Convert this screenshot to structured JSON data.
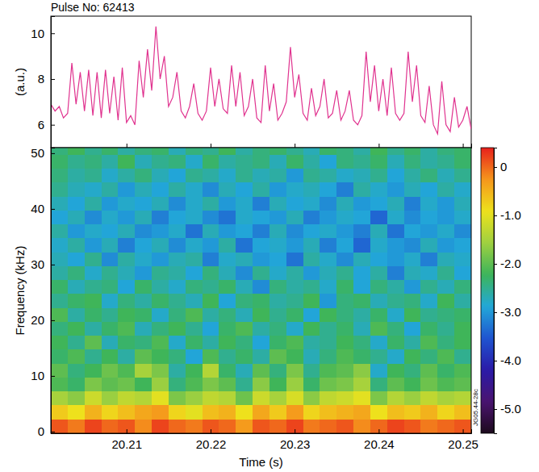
{
  "chart_data": [
    {
      "type": "line",
      "title": "Pulse No: 62413",
      "y_label": "(a.u.)",
      "x": [
        20.201,
        20.2015,
        20.202,
        20.2025,
        20.203,
        20.2035,
        20.204,
        20.2045,
        20.205,
        20.2055,
        20.206,
        20.2065,
        20.207,
        20.2075,
        20.208,
        20.2085,
        20.209,
        20.2095,
        20.21,
        20.2105,
        20.211,
        20.2115,
        20.212,
        20.2125,
        20.213,
        20.2135,
        20.214,
        20.2145,
        20.215,
        20.2155,
        20.216,
        20.2165,
        20.217,
        20.2175,
        20.218,
        20.2185,
        20.219,
        20.2195,
        20.22,
        20.2205,
        20.221,
        20.2215,
        20.222,
        20.2225,
        20.223,
        20.2235,
        20.224,
        20.2245,
        20.225,
        20.2255,
        20.226,
        20.2265,
        20.227,
        20.2275,
        20.228,
        20.2285,
        20.229,
        20.2295,
        20.23,
        20.2305,
        20.231,
        20.2315,
        20.232,
        20.2325,
        20.233,
        20.2335,
        20.234,
        20.2345,
        20.235,
        20.2355,
        20.236,
        20.2365,
        20.237,
        20.2375,
        20.238,
        20.2385,
        20.239,
        20.2395,
        20.24,
        20.2405,
        20.241,
        20.2415,
        20.242,
        20.2425,
        20.243,
        20.2435,
        20.244,
        20.2445,
        20.245,
        20.2455,
        20.246,
        20.2465,
        20.247,
        20.2475,
        20.248,
        20.2485,
        20.249,
        20.2495,
        20.25,
        20.2505,
        20.251
      ],
      "series": [
        {
          "color": "#e0338f",
          "values": [
            6.9,
            6.6,
            6.8,
            6.3,
            6.5,
            8.7,
            6.9,
            8.3,
            6.6,
            8.4,
            6.4,
            8.3,
            6.3,
            8.4,
            6.5,
            8.1,
            6.2,
            8.5,
            6.1,
            6.4,
            6.0,
            8.8,
            7.2,
            9.3,
            7.5,
            10.3,
            8.0,
            9.0,
            6.8,
            7.2,
            8.3,
            6.6,
            6.3,
            6.8,
            7.8,
            6.5,
            6.2,
            6.6,
            8.5,
            6.8,
            8.0,
            6.7,
            6.5,
            8.6,
            6.8,
            8.3,
            6.4,
            6.8,
            8.0,
            6.3,
            6.1,
            8.6,
            6.6,
            7.8,
            6.2,
            6.5,
            7.0,
            9.4,
            7.2,
            8.2,
            6.5,
            6.2,
            7.6,
            6.4,
            6.8,
            8.0,
            6.3,
            6.5,
            7.5,
            6.2,
            6.6,
            7.5,
            6.2,
            6.0,
            6.4,
            9.2,
            7.0,
            8.6,
            6.6,
            8.0,
            6.4,
            8.5,
            6.5,
            6.2,
            6.5,
            9.2,
            7.0,
            8.6,
            6.4,
            6.1,
            7.7,
            6.0,
            5.6,
            7.9,
            6.0,
            5.7,
            7.2,
            5.9,
            6.2,
            6.8,
            5.8
          ]
        }
      ],
      "xlim": [
        20.201,
        20.251
      ],
      "ylim": [
        5.0,
        10.75
      ],
      "xticks": [
        20.21,
        20.22,
        20.23,
        20.24,
        20.25
      ],
      "yticks": [
        6,
        8,
        10
      ],
      "tick_labels": "y"
    },
    {
      "type": "heatmap",
      "x_label": "Time (s)",
      "y_label": "Frequency (kHz)",
      "annotation": "JG05.44-28c",
      "xlim": [
        20.201,
        20.251
      ],
      "ylim": [
        -0.3,
        51
      ],
      "xticks": [
        20.21,
        20.22,
        20.23,
        20.24,
        20.25
      ],
      "yticks": [
        0,
        10,
        20,
        30,
        40,
        50
      ],
      "time_bins": [
        20.201,
        20.203,
        20.205,
        20.207,
        20.209,
        20.211,
        20.213,
        20.215,
        20.217,
        20.219,
        20.221,
        20.223,
        20.225,
        20.227,
        20.229,
        20.231,
        20.233,
        20.235,
        20.237,
        20.239,
        20.241,
        20.243,
        20.245,
        20.247,
        20.249,
        20.251
      ],
      "freq_bins": [
        -0.3,
        2.2,
        4.7,
        7.2,
        9.7,
        12.2,
        14.7,
        17.2,
        19.7,
        22.2,
        24.7,
        27.2,
        29.7,
        32.2,
        34.7,
        37.2,
        39.7,
        42.2,
        44.7,
        47.2,
        49.7,
        51
      ],
      "cells": [
        [
          0.1,
          -0.1,
          0.2,
          0,
          0.1,
          -0.2,
          0.2,
          0,
          -0.1,
          0.1,
          0,
          -0.3,
          0.1,
          0,
          0.2,
          -0.1,
          0,
          0.1,
          -0.2,
          0,
          0.2,
          0.1,
          -0.1,
          0,
          0.1
        ],
        [
          -0.7,
          -0.9,
          -0.5,
          -0.8,
          -0.6,
          -0.4,
          -0.3,
          -0.8,
          -1,
          -0.6,
          -0.5,
          -0.9,
          -0.4,
          -0.7,
          -0.3,
          -0.8,
          -0.6,
          -0.5,
          -0.4,
          -0.9,
          -0.6,
          -0.7,
          -0.5,
          -0.8,
          -0.6
        ],
        [
          -1.5,
          -1.7,
          -1.2,
          -1.6,
          -1.3,
          -1.4,
          -1.0,
          -1.8,
          -1.6,
          -1.3,
          -1.4,
          -1.9,
          -1.2,
          -1.5,
          -1.1,
          -1.7,
          -1.3,
          -1.2,
          -1.0,
          -1.8,
          -1.4,
          -1.6,
          -1.3,
          -1.5,
          -1.4
        ],
        [
          -2.1,
          -2.3,
          -1.8,
          -2.0,
          -1.9,
          -2.2,
          -1.6,
          -2.4,
          -2.1,
          -1.8,
          -2.0,
          -2.5,
          -1.7,
          -2.2,
          -1.6,
          -2.3,
          -1.9,
          -1.8,
          -1.5,
          -2.4,
          -2.0,
          -2.2,
          -1.9,
          -2.1,
          -2.0
        ],
        [
          -2.0,
          -2.4,
          -2.2,
          -1.9,
          -2.1,
          -1.5,
          -1.8,
          -2.6,
          -2.2,
          -1.4,
          -2.3,
          -2.7,
          -2.0,
          -2.4,
          -1.8,
          -2.5,
          -2.1,
          -2.0,
          -1.7,
          -2.8,
          -2.2,
          -2.4,
          -2.0,
          -2.3,
          -2.1
        ],
        [
          -2.3,
          -2.1,
          -2.5,
          -2.2,
          -2.6,
          -2.0,
          -2.2,
          -2.4,
          -2.9,
          -2.1,
          -2.5,
          -2.3,
          -2.6,
          -2.0,
          -2.2,
          -2.7,
          -2.4,
          -2.1,
          -2.3,
          -2.5,
          -2.8,
          -2.2,
          -2.4,
          -2.1,
          -2.5
        ],
        [
          -2.2,
          -2.5,
          -2.0,
          -2.7,
          -2.3,
          -2.4,
          -2.1,
          -2.8,
          -2.3,
          -2.6,
          -2.2,
          -2.4,
          -2.9,
          -2.3,
          -2.1,
          -2.6,
          -2.5,
          -2.2,
          -2.4,
          -2.8,
          -2.3,
          -2.6,
          -2.1,
          -2.4,
          -2.2
        ],
        [
          -2.4,
          -2.2,
          -2.6,
          -2.3,
          -2.1,
          -2.7,
          -2.4,
          -2.2,
          -2.5,
          -2.9,
          -2.3,
          -2.1,
          -2.6,
          -2.4,
          -2.8,
          -2.2,
          -2.5,
          -2.3,
          -2.7,
          -2.1,
          -2.4,
          -2.9,
          -2.3,
          -2.5,
          -2.2
        ],
        [
          -2.1,
          -2.6,
          -2.3,
          -2.5,
          -2.2,
          -2.3,
          -2.8,
          -2.4,
          -2.1,
          -2.6,
          -2.4,
          -2.7,
          -2.2,
          -2.5,
          -2.3,
          -2.9,
          -2.2,
          -2.4,
          -2.6,
          -2.3,
          -2.8,
          -2.2,
          -2.5,
          -2.4,
          -2.3
        ],
        [
          -2.5,
          -2.3,
          -2.2,
          -2.8,
          -2.4,
          -2.6,
          -2.3,
          -2.5,
          -2.7,
          -2.2,
          -2.9,
          -2.4,
          -2.3,
          -2.6,
          -2.5,
          -2.2,
          -3.0,
          -2.4,
          -2.3,
          -2.7,
          -2.5,
          -2.4,
          -2.8,
          -2.2,
          -2.6
        ],
        [
          -2.3,
          -2.7,
          -2.5,
          -2.4,
          -2.9,
          -2.3,
          -2.6,
          -2.8,
          -2.4,
          -2.5,
          -2.3,
          -2.7,
          -3.1,
          -2.4,
          -2.6,
          -2.5,
          -2.8,
          -2.3,
          -2.9,
          -2.4,
          -2.6,
          -3.0,
          -2.5,
          -2.7,
          -2.4
        ],
        [
          -2.6,
          -2.4,
          -2.8,
          -2.5,
          -2.7,
          -3.0,
          -2.5,
          -2.6,
          -2.9,
          -2.4,
          -2.7,
          -3.1,
          -2.5,
          -2.8,
          -2.6,
          -3.0,
          -2.7,
          -2.5,
          -2.9,
          -2.6,
          -3.2,
          -2.7,
          -2.8,
          -2.5,
          -2.9
        ],
        [
          -2.7,
          -2.9,
          -2.5,
          -3.1,
          -2.6,
          -2.8,
          -3.0,
          -2.7,
          -2.6,
          -3.2,
          -2.8,
          -2.7,
          -3.0,
          -2.9,
          -3.3,
          -2.6,
          -2.8,
          -3.1,
          -2.7,
          -2.9,
          -3.0,
          -2.8,
          -3.2,
          -2.7,
          -2.8
        ],
        [
          -2.8,
          -2.6,
          -3.0,
          -2.7,
          -3.2,
          -2.9,
          -2.7,
          -3.1,
          -2.8,
          -3.0,
          -2.6,
          -3.3,
          -2.9,
          -2.8,
          -3.0,
          -2.7,
          -3.2,
          -2.9,
          -3.4,
          -2.8,
          -3.0,
          -3.1,
          -2.7,
          -3.0,
          -2.9
        ],
        [
          -2.6,
          -3.0,
          -2.8,
          -2.9,
          -2.7,
          -3.1,
          -3.0,
          -2.8,
          -3.3,
          -2.7,
          -3.0,
          -2.9,
          -3.2,
          -2.7,
          -3.1,
          -2.9,
          -2.8,
          -3.0,
          -3.2,
          -2.7,
          -3.3,
          -2.9,
          -3.0,
          -2.8,
          -3.1
        ],
        [
          -2.9,
          -2.7,
          -3.1,
          -2.8,
          -3.0,
          -2.7,
          -3.2,
          -2.9,
          -2.8,
          -3.1,
          -3.3,
          -2.8,
          -2.9,
          -3.0,
          -2.7,
          -3.2,
          -3.0,
          -2.8,
          -2.9,
          -3.4,
          -2.8,
          -3.1,
          -2.9,
          -3.0,
          -2.8
        ],
        [
          -2.7,
          -2.9,
          -2.6,
          -3.0,
          -2.8,
          -2.9,
          -2.7,
          -3.1,
          -2.8,
          -2.6,
          -3.0,
          -2.8,
          -3.2,
          -2.7,
          -2.9,
          -2.8,
          -3.1,
          -2.7,
          -3.0,
          -2.9,
          -2.7,
          -3.2,
          -2.8,
          -3.0,
          -2.7
        ],
        [
          -2.5,
          -2.7,
          -2.8,
          -2.6,
          -3.0,
          -2.7,
          -2.9,
          -2.6,
          -2.8,
          -3.1,
          -2.7,
          -2.9,
          -2.6,
          -3.0,
          -2.8,
          -2.7,
          -2.9,
          -3.2,
          -2.6,
          -2.8,
          -3.0,
          -2.7,
          -2.9,
          -2.6,
          -2.8
        ],
        [
          -2.4,
          -2.6,
          -2.5,
          -2.8,
          -2.6,
          -2.4,
          -2.7,
          -2.9,
          -2.5,
          -2.6,
          -2.8,
          -2.5,
          -2.7,
          -2.6,
          -3.0,
          -2.5,
          -2.6,
          -2.8,
          -2.7,
          -2.5,
          -2.9,
          -2.6,
          -2.4,
          -2.7,
          -2.5
        ],
        [
          -2.3,
          -2.5,
          -2.4,
          -2.6,
          -2.2,
          -2.7,
          -2.5,
          -2.4,
          -2.8,
          -2.3,
          -2.6,
          -2.5,
          -2.4,
          -2.7,
          -2.3,
          -2.6,
          -2.9,
          -2.4,
          -2.5,
          -2.3,
          -2.7,
          -2.4,
          -2.6,
          -2.5,
          -2.3
        ],
        [
          -2.4,
          -2.2,
          -2.5,
          -2.3,
          -2.6,
          -2.4,
          -2.3,
          -2.7,
          -2.4,
          -2.5,
          -2.2,
          -2.6,
          -2.4,
          -2.3,
          -2.5,
          -2.7,
          -2.3,
          -2.4,
          -2.6,
          -2.2,
          -2.5,
          -2.3,
          -2.6,
          -2.4,
          -2.3
        ]
      ],
      "colorbar_range": [
        -5.5,
        0.4
      ],
      "colorbar_ticks": [
        0,
        {
          "value": -1,
          "label": "-1.0"
        },
        {
          "value": -2,
          "label": "-2.0"
        },
        {
          "value": -3,
          "label": "-3.0"
        },
        {
          "value": -4,
          "label": "-4.0"
        },
        {
          "value": -5,
          "label": "-5.0"
        }
      ]
    }
  ]
}
